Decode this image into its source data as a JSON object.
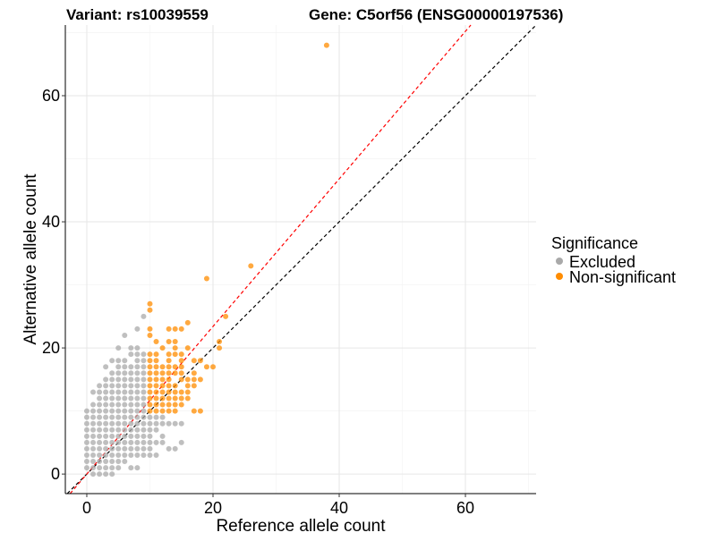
{
  "chart_data": {
    "type": "scatter",
    "title_left": "Variant: rs10039559",
    "title_right": "Gene: C5orf56 (ENSG00000197536)",
    "xlabel": "Reference allele count",
    "ylabel": "Alternative allele count",
    "xlim": [
      -3.4,
      71.2
    ],
    "ylim": [
      -3.1,
      71.2
    ],
    "xticks": [
      0,
      20,
      40,
      60
    ],
    "yticks": [
      0,
      20,
      40,
      60
    ],
    "minor_grid": [
      10,
      30,
      50,
      70
    ],
    "grid": true,
    "legend": {
      "title": "Significance",
      "placement": "right",
      "entries": [
        {
          "label": "Excluded",
          "color": "#a9a9a9"
        },
        {
          "label": "Non-significant",
          "color": "#ff8c00"
        }
      ]
    },
    "reference_lines": [
      {
        "name": "identity",
        "slope": 1.0,
        "intercept": 0,
        "color": "#000000",
        "style": "dashed"
      },
      {
        "name": "fit",
        "slope": 1.17,
        "intercept": 0,
        "color": "#ff0000",
        "style": "dashed"
      }
    ],
    "series": [
      {
        "name": "Excluded",
        "color": "#a9a9a9",
        "rows": [
          {
            "y": 0,
            "x": [
              1,
              2,
              3,
              4
            ]
          },
          {
            "y": 1,
            "x": [
              0,
              1,
              2,
              3,
              4,
              5,
              7,
              8
            ]
          },
          {
            "y": 2,
            "x": [
              0,
              1,
              2,
              3,
              4,
              5,
              6
            ]
          },
          {
            "y": 3,
            "x": [
              0,
              1,
              2,
              3,
              4,
              5,
              6,
              7,
              8,
              9,
              10,
              11
            ]
          },
          {
            "y": 4,
            "x": [
              0,
              1,
              2,
              3,
              4,
              5,
              6,
              7,
              8,
              9,
              10,
              13,
              14
            ]
          },
          {
            "y": 5,
            "x": [
              0,
              1,
              2,
              3,
              4,
              5,
              6,
              7,
              8,
              9,
              10,
              11,
              12,
              15
            ]
          },
          {
            "y": 6,
            "x": [
              0,
              1,
              2,
              3,
              4,
              5,
              6,
              7,
              8,
              9,
              10,
              12
            ]
          },
          {
            "y": 7,
            "x": [
              0,
              1,
              2,
              3,
              4,
              5,
              6,
              7,
              8,
              9,
              10,
              11
            ]
          },
          {
            "y": 8,
            "x": [
              0,
              1,
              2,
              3,
              4,
              5,
              6,
              7,
              8,
              9,
              10,
              11,
              12,
              13,
              14,
              15
            ]
          },
          {
            "y": 9,
            "x": [
              0,
              1,
              2,
              3,
              4,
              5,
              6,
              7,
              8,
              9,
              10,
              11,
              12
            ]
          },
          {
            "y": 10,
            "x": [
              0,
              1,
              2,
              3,
              4,
              5,
              6,
              7,
              8,
              9
            ]
          },
          {
            "y": 11,
            "x": [
              1,
              2,
              3,
              4,
              5,
              6,
              7,
              8,
              9
            ]
          },
          {
            "y": 12,
            "x": [
              2,
              3,
              4,
              5,
              6,
              7,
              8,
              9
            ]
          },
          {
            "y": 13,
            "x": [
              1,
              2,
              3,
              4,
              5,
              6,
              7,
              8,
              9
            ]
          },
          {
            "y": 14,
            "x": [
              2,
              3,
              4,
              5,
              6,
              7,
              8,
              9
            ]
          },
          {
            "y": 15,
            "x": [
              3,
              4,
              5,
              6,
              7,
              8,
              9
            ]
          },
          {
            "y": 16,
            "x": [
              4,
              5,
              6,
              7,
              8,
              9
            ]
          },
          {
            "y": 17,
            "x": [
              3,
              5,
              6,
              7,
              8,
              9
            ]
          },
          {
            "y": 18,
            "x": [
              4,
              5,
              6,
              8,
              9
            ]
          },
          {
            "y": 19,
            "x": [
              7,
              8,
              9
            ]
          },
          {
            "y": 20,
            "x": [
              5,
              7,
              8
            ]
          },
          {
            "y": 22,
            "x": [
              6
            ]
          },
          {
            "y": 23,
            "x": [
              8
            ]
          },
          {
            "y": 25,
            "x": [
              9
            ]
          }
        ]
      },
      {
        "name": "Non-significant",
        "color": "#ff8c00",
        "rows": [
          {
            "y": 10,
            "x": [
              10,
              11,
              12,
              13,
              14,
              17,
              18
            ]
          },
          {
            "y": 11,
            "x": [
              10,
              11,
              12,
              13,
              14,
              15
            ]
          },
          {
            "y": 12,
            "x": [
              10,
              11,
              12,
              13,
              14,
              15,
              16
            ]
          },
          {
            "y": 13,
            "x": [
              10,
              11,
              12,
              13,
              14,
              15,
              16
            ]
          },
          {
            "y": 14,
            "x": [
              10,
              11,
              12,
              13,
              14,
              16,
              17
            ]
          },
          {
            "y": 15,
            "x": [
              10,
              11,
              12,
              13,
              15,
              16,
              17,
              18
            ]
          },
          {
            "y": 16,
            "x": [
              10,
              11,
              12,
              13,
              14,
              15,
              17
            ]
          },
          {
            "y": 17,
            "x": [
              10,
              11,
              12,
              13,
              14,
              15,
              19,
              20
            ]
          },
          {
            "y": 18,
            "x": [
              10,
              11,
              13,
              15,
              17,
              18
            ]
          },
          {
            "y": 19,
            "x": [
              10,
              11,
              13,
              14,
              15
            ]
          },
          {
            "y": 20,
            "x": [
              12,
              14,
              16,
              21
            ]
          },
          {
            "y": 21,
            "x": [
              11,
              13,
              14,
              21
            ]
          },
          {
            "y": 22,
            "x": [
              10
            ]
          },
          {
            "y": 23,
            "x": [
              10,
              13,
              14,
              15
            ]
          },
          {
            "y": 24,
            "x": [
              16
            ]
          },
          {
            "y": 25,
            "x": [
              22
            ]
          },
          {
            "y": 26,
            "x": [
              10
            ]
          },
          {
            "y": 27,
            "x": [
              10
            ]
          },
          {
            "y": 31,
            "x": [
              19
            ]
          },
          {
            "y": 33,
            "x": [
              26
            ]
          },
          {
            "y": 68,
            "x": [
              38
            ]
          }
        ]
      }
    ]
  }
}
